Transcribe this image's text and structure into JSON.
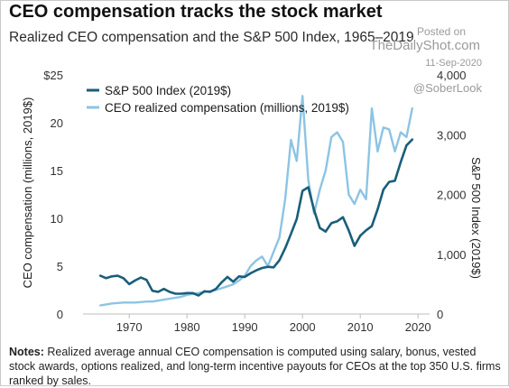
{
  "title": "CEO compensation tracks the stock market",
  "subtitle": "Realized CEO compensation and the S&P 500 Index, 1965–2019",
  "watermark": {
    "posted": "Posted on",
    "site": "TheDailyShot.com",
    "date": "11-Sep-2020",
    "handle": "@SoberLook"
  },
  "notes": {
    "label": "Notes:",
    "text": " Realized average annual CEO compensation is computed using salary, bonus, vested stock awards, options realized, and long-term incentive payouts for CEOs at the top 350 U.S. firms ranked by sales."
  },
  "colors": {
    "sp500": "#1a5e7a",
    "ceo": "#8cc4e4"
  },
  "chart_data": {
    "type": "line",
    "xlabel": "",
    "ylabel_left": "CEO compensation (millions, 2019$)",
    "ylabel_right": "S&P 500 Index (2019$)",
    "xlim": [
      1962,
      2022
    ],
    "ylim_left": [
      0,
      25
    ],
    "ylim_right": [
      0,
      4000
    ],
    "x_ticks": [
      1970,
      1980,
      1990,
      2000,
      2010,
      2020
    ],
    "y_left_ticks": [
      "0",
      "5",
      "10",
      "15",
      "20",
      "$25"
    ],
    "y_left_tick_values": [
      0,
      5,
      10,
      15,
      20,
      25
    ],
    "y_right_ticks": [
      "0",
      "1,000",
      "2,000",
      "3,000",
      "4,000"
    ],
    "y_right_tick_values": [
      0,
      1000,
      2000,
      3000,
      4000
    ],
    "grid": false,
    "legend_position": "top-left",
    "series": [
      {
        "name": "S&P 500 Index (2019$)",
        "axis": "right",
        "x": [
          1965,
          1966,
          1967,
          1968,
          1969,
          1970,
          1971,
          1972,
          1973,
          1974,
          1975,
          1976,
          1977,
          1978,
          1979,
          1980,
          1981,
          1982,
          1983,
          1984,
          1985,
          1986,
          1987,
          1988,
          1989,
          1990,
          1991,
          1992,
          1993,
          1994,
          1995,
          1996,
          1997,
          1998,
          1999,
          2000,
          2001,
          2002,
          2003,
          2004,
          2005,
          2006,
          2007,
          2008,
          2009,
          2010,
          2011,
          2012,
          2013,
          2014,
          2015,
          2016,
          2017,
          2018,
          2019
        ],
        "values": [
          640,
          600,
          630,
          640,
          600,
          500,
          560,
          610,
          570,
          390,
          370,
          420,
          370,
          340,
          340,
          350,
          350,
          310,
          380,
          370,
          420,
          530,
          620,
          540,
          630,
          620,
          680,
          730,
          770,
          790,
          780,
          900,
          1100,
          1340,
          1590,
          2060,
          2120,
          1740,
          1440,
          1380,
          1520,
          1550,
          1620,
          1400,
          1140,
          1310,
          1400,
          1470,
          1750,
          2080,
          2210,
          2230,
          2540,
          2820,
          2920
        ]
      },
      {
        "name": "CEO realized compensation (millions, 2019$)",
        "axis": "left",
        "x": [
          1965,
          1966,
          1967,
          1968,
          1969,
          1970,
          1971,
          1972,
          1973,
          1974,
          1975,
          1976,
          1977,
          1978,
          1979,
          1980,
          1981,
          1982,
          1983,
          1984,
          1985,
          1986,
          1987,
          1988,
          1989,
          1990,
          1991,
          1992,
          1993,
          1994,
          1995,
          1996,
          1997,
          1998,
          1999,
          2000,
          2001,
          2002,
          2003,
          2004,
          2005,
          2006,
          2007,
          2008,
          2009,
          2010,
          2011,
          2012,
          2013,
          2014,
          2015,
          2016,
          2017,
          2018,
          2019
        ],
        "values": [
          0.9,
          1.0,
          1.1,
          1.15,
          1.2,
          1.2,
          1.2,
          1.25,
          1.3,
          1.3,
          1.4,
          1.5,
          1.6,
          1.7,
          1.8,
          2.0,
          2.1,
          2.2,
          2.3,
          2.4,
          2.5,
          2.7,
          2.9,
          3.1,
          3.5,
          4.0,
          5.0,
          5.6,
          6.0,
          5.0,
          6.5,
          8.0,
          12.0,
          18.2,
          16.0,
          22.8,
          14.0,
          10.5,
          13.0,
          15.0,
          18.5,
          19.0,
          18.0,
          12.5,
          11.5,
          13.0,
          12.0,
          21.5,
          17.0,
          19.5,
          19.3,
          17.0,
          19.0,
          18.5,
          21.5
        ]
      }
    ]
  }
}
